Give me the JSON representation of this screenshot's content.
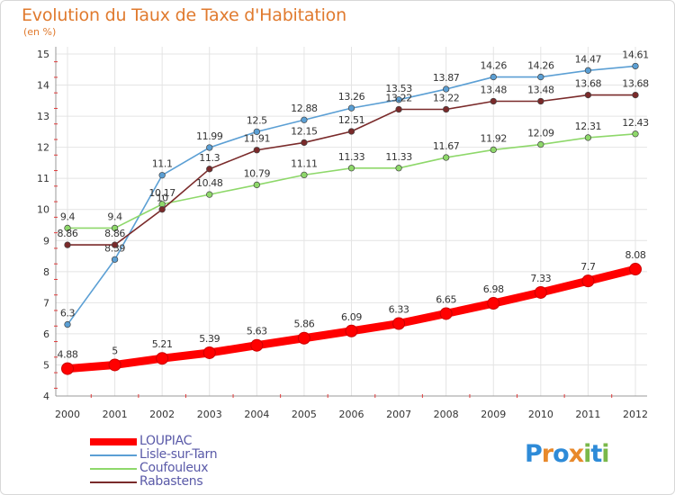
{
  "title": "Evolution du Taux de Taxe d'Habitation",
  "subtitle": "(en %)",
  "logo": {
    "letters": [
      "P",
      "r",
      "o",
      "x",
      "i",
      "t",
      "i"
    ],
    "colors": [
      "#2e8bd8",
      "#e8892b",
      "#2e8bd8",
      "#e8892b",
      "#7ab84a",
      "#2e8bd8",
      "#7ab84a"
    ]
  },
  "chart_data": {
    "type": "line",
    "x": [
      "2000",
      "2001",
      "2002",
      "2003",
      "2004",
      "2005",
      "2006",
      "2007",
      "2008",
      "2009",
      "2010",
      "2011",
      "2012"
    ],
    "ylim": [
      4,
      15
    ],
    "yticks": [
      "4",
      "5",
      "6",
      "7",
      "8",
      "9",
      "10",
      "11",
      "12",
      "13",
      "14",
      "15"
    ],
    "grid": true,
    "legend_position": "bottom-left",
    "series": [
      {
        "name": "LOUPIAC",
        "color": "#ff0000",
        "values": [
          4.88,
          5,
          5.21,
          5.39,
          5.63,
          5.86,
          6.09,
          6.33,
          6.65,
          6.98,
          7.33,
          7.7,
          8.08
        ],
        "labels": [
          "4.88",
          "5",
          "5.21",
          "5.39",
          "5.63",
          "5.86",
          "6.09",
          "6.33",
          "6.65",
          "6.98",
          "7.33",
          "7.7",
          "8.08"
        ]
      },
      {
        "name": "Lisle-sur-Tarn",
        "color": "#5b9fd4",
        "values": [
          6.3,
          8.39,
          11.1,
          11.99,
          12.5,
          12.88,
          13.26,
          13.53,
          13.87,
          14.26,
          14.26,
          14.47,
          14.61
        ],
        "labels": [
          "6.3",
          "8.39",
          "11.1",
          "11.99",
          "12.5",
          "12.88",
          "13.26",
          "13.53",
          "13.87",
          "14.26",
          "14.26",
          "14.47",
          "14.61"
        ]
      },
      {
        "name": "Coufouleux",
        "color": "#8ed86a",
        "values": [
          9.4,
          9.4,
          10.17,
          10.48,
          10.79,
          11.11,
          11.33,
          11.33,
          11.67,
          11.92,
          12.09,
          12.31,
          12.43
        ],
        "labels": [
          "9.4",
          "9.4",
          "10.17",
          "10.48",
          "10.79",
          "11.11",
          "11.33",
          "11.33",
          "11.67",
          "11.92",
          "12.09",
          "12.31",
          "12.43"
        ]
      },
      {
        "name": "Rabastens",
        "color": "#7a2a2a",
        "values": [
          8.86,
          8.86,
          10,
          11.3,
          11.91,
          12.15,
          12.51,
          13.22,
          13.22,
          13.48,
          13.48,
          13.68,
          13.68
        ],
        "labels": [
          "8.86",
          "8.86",
          "10",
          "11.3",
          "11.91",
          "12.15",
          "12.51",
          "13.22",
          "13.22",
          "13.48",
          "13.48",
          "13.68",
          "13.68"
        ]
      }
    ]
  }
}
